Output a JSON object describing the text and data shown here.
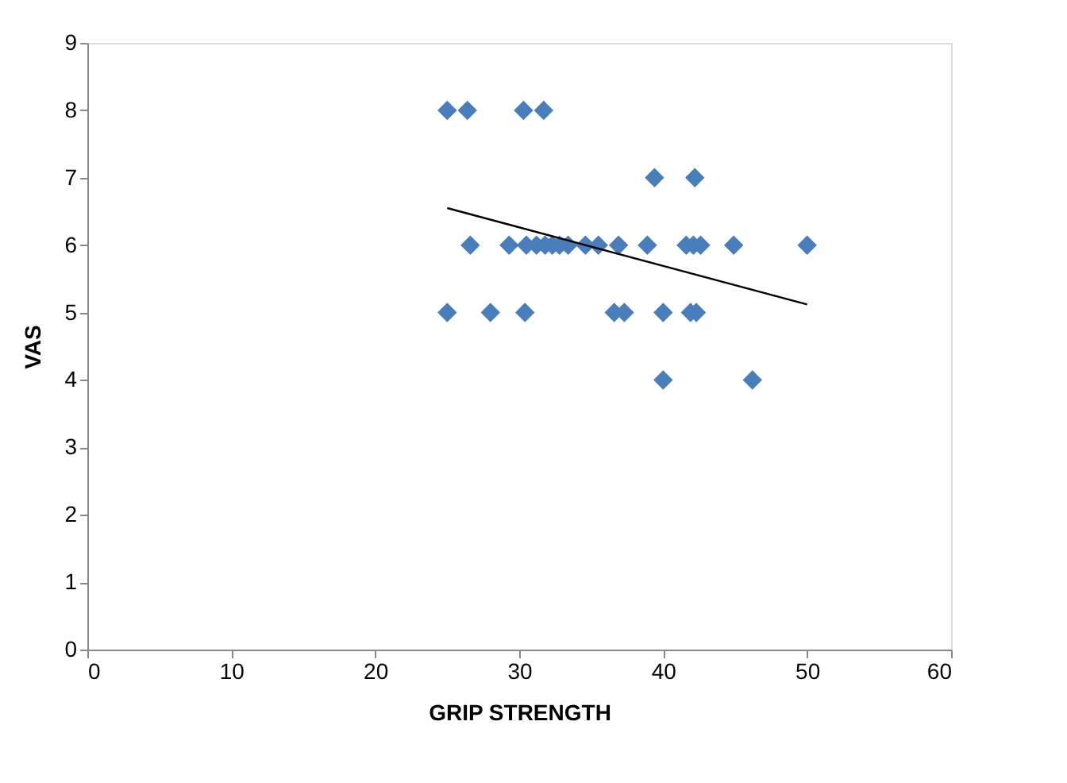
{
  "chart_data": {
    "type": "scatter",
    "xlabel": "GRIP STRENGTH",
    "ylabel": "VAS",
    "xlim": [
      0,
      60
    ],
    "xticks": [
      0,
      10,
      20,
      30,
      40,
      50,
      60
    ],
    "ylim": [
      0,
      9
    ],
    "yticks": [
      0,
      1,
      2,
      3,
      4,
      5,
      6,
      7,
      8,
      9
    ],
    "grid": false,
    "series": [
      {
        "color": "#4a7ebb",
        "marker": "diamond",
        "x": [
          25.0,
          26.4,
          30.3,
          31.7,
          39.4,
          42.2,
          26.6,
          29.3,
          30.5,
          31.2,
          31.8,
          32.3,
          32.8,
          33.4,
          34.6,
          35.5,
          36.9,
          38.9,
          41.6,
          42.1,
          42.6,
          44.9,
          50.0,
          25.0,
          28.0,
          30.4,
          36.6,
          37.3,
          40.0,
          41.9,
          42.3,
          40.0,
          46.2
        ],
        "values": [
          8,
          8,
          8,
          8,
          7,
          7,
          6,
          6,
          6,
          6,
          6,
          6,
          6,
          6,
          6,
          6,
          6,
          6,
          6,
          6,
          6,
          6,
          6,
          5,
          5,
          5,
          5,
          5,
          5,
          5,
          5,
          4,
          4
        ]
      },
      {
        "type": "line",
        "color": "#000000",
        "line_style": "solid",
        "x": [
          25.0,
          50.0
        ],
        "values": [
          6.55,
          5.12
        ]
      }
    ]
  }
}
